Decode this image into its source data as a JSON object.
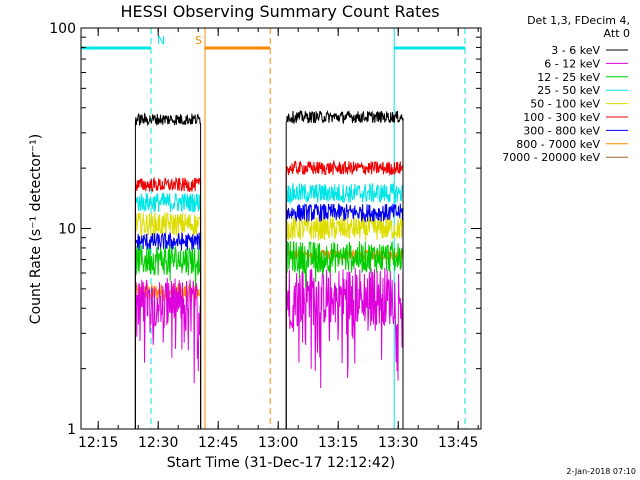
{
  "chart_data": {
    "type": "line",
    "title": "HESSI Observing Summary Count Rates",
    "xlabel": "Start Time (31-Dec-17 12:12:42)",
    "ylabel": "Count Rate (s⁻¹ detector⁻¹)",
    "y_scale": "log",
    "ylim": [
      1,
      100
    ],
    "x_unit": "minutes after 12:12:42",
    "xlim": [
      -2,
      98
    ],
    "x_ticks": [
      {
        "label": "12:15",
        "value": 2.3
      },
      {
        "label": "12:30",
        "value": 17.3
      },
      {
        "label": "12:45",
        "value": 32.3
      },
      {
        "label": "13:00",
        "value": 47.3
      },
      {
        "label": "13:15",
        "value": 62.3
      },
      {
        "label": "13:30",
        "value": 77.3
      },
      {
        "label": "13:45",
        "value": 92.3
      }
    ],
    "y_ticks": [
      {
        "label": "1",
        "value": 1
      },
      {
        "label": "10",
        "value": 10
      },
      {
        "label": "100",
        "value": 100
      }
    ],
    "grid": false,
    "legend_position": "right",
    "legend_header": [
      "Det 1,3, FDecim 4,",
      "Att 0"
    ],
    "series": [
      {
        "name": "3 - 6 keV",
        "color": "#000000",
        "segments": [
          {
            "start": 11.6,
            "end": 27.9,
            "mean": 35,
            "jitter": 0.03
          },
          {
            "start": 49.3,
            "end": 78.5,
            "mean": 36,
            "jitter": 0.03
          }
        ]
      },
      {
        "name": "6 - 12 keV",
        "color": "#dd00dd",
        "segments": [
          {
            "start": 11.6,
            "end": 27.9,
            "mean": 4.3,
            "jitter": 0.12
          },
          {
            "start": 49.3,
            "end": 78.5,
            "mean": 4.6,
            "jitter": 0.15
          }
        ]
      },
      {
        "name": "12 - 25 keV",
        "color": "#00cc00",
        "segments": [
          {
            "start": 11.6,
            "end": 27.9,
            "mean": 7.0,
            "jitter": 0.08
          },
          {
            "start": 49.3,
            "end": 78.5,
            "mean": 7.2,
            "jitter": 0.08
          }
        ]
      },
      {
        "name": "25 - 50 keV",
        "color": "#00e5e5",
        "segments": [
          {
            "start": 11.6,
            "end": 27.9,
            "mean": 13.5,
            "jitter": 0.05
          },
          {
            "start": 49.3,
            "end": 78.5,
            "mean": 15.0,
            "jitter": 0.05
          }
        ]
      },
      {
        "name": "50 - 100 keV",
        "color": "#dddd00",
        "segments": [
          {
            "start": 11.6,
            "end": 27.9,
            "mean": 10.5,
            "jitter": 0.06
          },
          {
            "start": 49.3,
            "end": 78.5,
            "mean": 10.0,
            "jitter": 0.06
          }
        ]
      },
      {
        "name": "100 - 300 keV",
        "color": "#ee0000",
        "segments": [
          {
            "start": 11.6,
            "end": 27.9,
            "mean": 16.5,
            "jitter": 0.035
          },
          {
            "start": 49.3,
            "end": 78.5,
            "mean": 20.0,
            "jitter": 0.035
          }
        ]
      },
      {
        "name": "300 - 800 keV",
        "color": "#0000ee",
        "segments": [
          {
            "start": 11.6,
            "end": 27.9,
            "mean": 8.6,
            "jitter": 0.045
          },
          {
            "start": 49.3,
            "end": 78.5,
            "mean": 12.0,
            "jitter": 0.045
          }
        ]
      },
      {
        "name": "800 - 7000 keV",
        "color": "#ff8800",
        "segments": [
          {
            "start": 11.6,
            "end": 27.9,
            "mean": 4.8,
            "jitter": 0.045
          },
          {
            "start": 49.3,
            "end": 78.5,
            "mean": 7.4,
            "jitter": 0.025
          }
        ]
      },
      {
        "name": "7000 - 20000 keV",
        "color": "#996633",
        "segments": []
      }
    ],
    "markers": [
      {
        "label": "N",
        "color": "#00e5e5",
        "bar": [
          -2.0,
          15.5
        ],
        "solid_line": -2.0,
        "dashed_line": 15.5
      },
      {
        "label": "N",
        "color": "#00e5e5",
        "bar": [
          76.3,
          94.0
        ],
        "solid_line": 76.3,
        "dashed_line": 94.0
      },
      {
        "label": "S",
        "color": "#ff8800",
        "bar": [
          29.0,
          45.3
        ],
        "solid_line": 29.0,
        "dashed_line": 45.3
      }
    ]
  },
  "footer": {
    "timestamp": "2-Jan-2018 07:10"
  }
}
